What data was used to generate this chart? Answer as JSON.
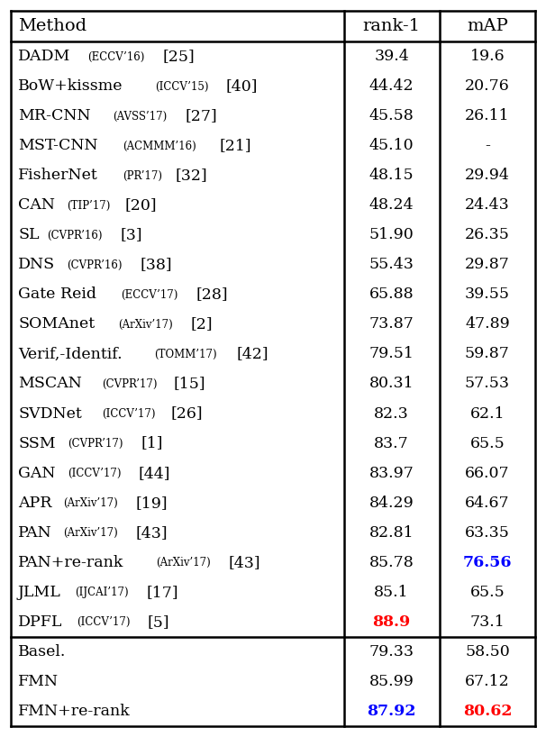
{
  "col_headers": [
    "Method",
    "rank-1",
    "mAP"
  ],
  "rows": [
    {
      "method": "DADM",
      "venue": "ECCV’16",
      "cite": "[25]",
      "rank1": "39.4",
      "map": "19.6",
      "rank1_color": "black",
      "map_color": "black"
    },
    {
      "method": "BoW+kissme",
      "venue": "ICCV’15",
      "cite": "[40]",
      "rank1": "44.42",
      "map": "20.76",
      "rank1_color": "black",
      "map_color": "black"
    },
    {
      "method": "MR-CNN",
      "venue": "AVSS’17",
      "cite": "[27]",
      "rank1": "45.58",
      "map": "26.11",
      "rank1_color": "black",
      "map_color": "black"
    },
    {
      "method": "MST-CNN",
      "venue": "ACMMM’16",
      "cite": "[21]",
      "rank1": "45.10",
      "map": "-",
      "rank1_color": "black",
      "map_color": "black"
    },
    {
      "method": "FisherNet",
      "venue": "PR’17",
      "cite": "[32]",
      "rank1": "48.15",
      "map": "29.94",
      "rank1_color": "black",
      "map_color": "black"
    },
    {
      "method": "CAN",
      "venue": "TIP’17",
      "cite": "[20]",
      "rank1": "48.24",
      "map": "24.43",
      "rank1_color": "black",
      "map_color": "black"
    },
    {
      "method": "SL",
      "venue": "CVPR’16",
      "cite": "[3]",
      "rank1": "51.90",
      "map": "26.35",
      "rank1_color": "black",
      "map_color": "black"
    },
    {
      "method": "DNS",
      "venue": "CVPR’16",
      "cite": "[38]",
      "rank1": "55.43",
      "map": "29.87",
      "rank1_color": "black",
      "map_color": "black"
    },
    {
      "method": "Gate Reid",
      "venue": "ECCV’17",
      "cite": "[28]",
      "rank1": "65.88",
      "map": "39.55",
      "rank1_color": "black",
      "map_color": "black"
    },
    {
      "method": "SOMAnet",
      "venue": "ArXiv’17",
      "cite": "[2]",
      "rank1": "73.87",
      "map": "47.89",
      "rank1_color": "black",
      "map_color": "black"
    },
    {
      "method": "Verif,-Identif.",
      "venue": "TOMM’17",
      "cite": "[42]",
      "rank1": "79.51",
      "map": "59.87",
      "rank1_color": "black",
      "map_color": "black"
    },
    {
      "method": "MSCAN",
      "venue": "CVPR’17",
      "cite": "[15]",
      "rank1": "80.31",
      "map": "57.53",
      "rank1_color": "black",
      "map_color": "black"
    },
    {
      "method": "SVDNet",
      "venue": "ICCV’17",
      "cite": "[26]",
      "rank1": "82.3",
      "map": "62.1",
      "rank1_color": "black",
      "map_color": "black"
    },
    {
      "method": "SSM",
      "venue": "CVPR’17",
      "cite": "[1]",
      "rank1": "83.7",
      "map": "65.5",
      "rank1_color": "black",
      "map_color": "black"
    },
    {
      "method": "GAN",
      "venue": "ICCV’17",
      "cite": "[44]",
      "rank1": "83.97",
      "map": "66.07",
      "rank1_color": "black",
      "map_color": "black"
    },
    {
      "method": "APR",
      "venue": "ArXiv’17",
      "cite": "[19]",
      "rank1": "84.29",
      "map": "64.67",
      "rank1_color": "black",
      "map_color": "black"
    },
    {
      "method": "PAN",
      "venue": "ArXiv’17",
      "cite": "[43]",
      "rank1": "82.81",
      "map": "63.35",
      "rank1_color": "black",
      "map_color": "black"
    },
    {
      "method": "PAN+re-rank",
      "venue": "ArXiv’17",
      "cite": "[43]",
      "rank1": "85.78",
      "map": "76.56",
      "rank1_color": "black",
      "map_color": "blue"
    },
    {
      "method": "JLML",
      "venue": "IJCAI’17",
      "cite": "[17]",
      "rank1": "85.1",
      "map": "65.5",
      "rank1_color": "black",
      "map_color": "black"
    },
    {
      "method": "DPFL",
      "venue": "ICCV’17",
      "cite": "[5]",
      "rank1": "88.9",
      "map": "73.1",
      "rank1_color": "red",
      "map_color": "black"
    }
  ],
  "our_rows": [
    {
      "method": "Basel.",
      "rank1": "79.33",
      "map": "58.50",
      "rank1_color": "black",
      "map_color": "black"
    },
    {
      "method": "FMN",
      "rank1": "85.99",
      "map": "67.12",
      "rank1_color": "black",
      "map_color": "black"
    },
    {
      "method": "FMN+re-rank",
      "rank1": "87.92",
      "map": "80.62",
      "rank1_color": "blue",
      "map_color": "red"
    }
  ],
  "no_space_before_cite": [
    "MSCAN",
    "SVDNet"
  ],
  "fig_width": 6.06,
  "fig_height": 8.38,
  "dpi": 100
}
